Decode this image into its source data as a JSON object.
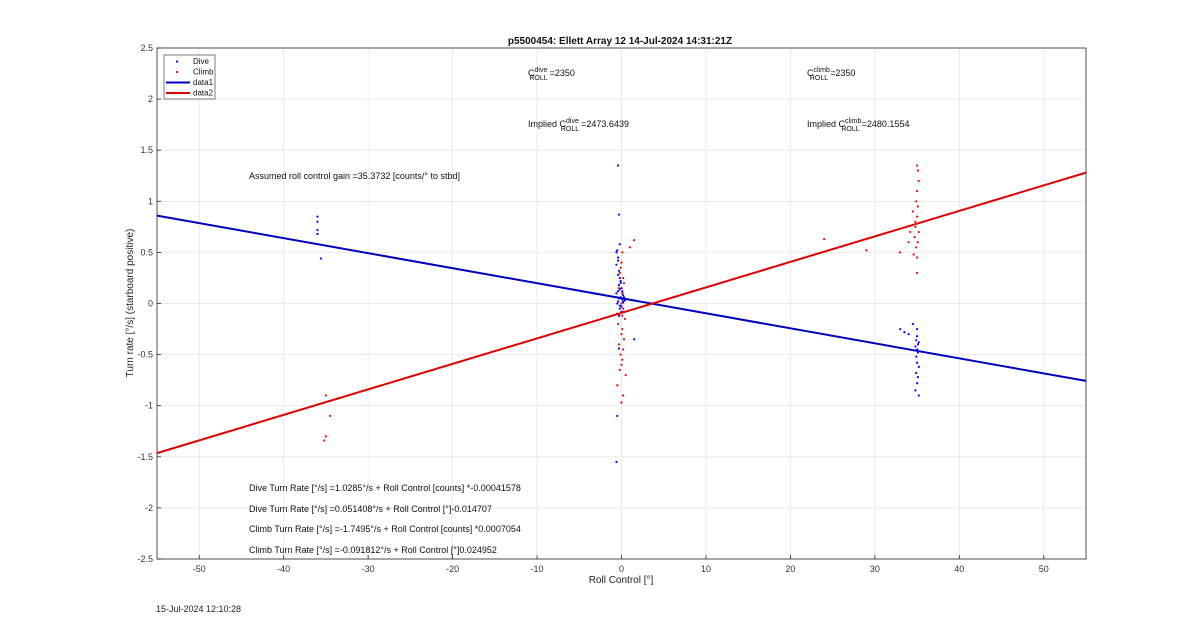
{
  "chart_data": {
    "type": "scatter",
    "title": "p5500454: Ellett Array 12 14-Jul-2024 14:31:21Z",
    "xlabel": "Roll Control [°]",
    "ylabel": "Turn rate [°/s] (starboard positive)",
    "xlim": [
      -55,
      55
    ],
    "ylim": [
      -2.5,
      2.5
    ],
    "xticks": [
      -50,
      -40,
      -30,
      -20,
      -10,
      0,
      10,
      20,
      30,
      40,
      50
    ],
    "yticks": [
      -2.5,
      -2,
      -1.5,
      -1,
      -0.5,
      0,
      0.5,
      1,
      1.5,
      2,
      2.5
    ],
    "xtick_labels": [
      "-50",
      "-40",
      "-30",
      "-20",
      "-10",
      "0",
      "10",
      "20",
      "30",
      "40",
      "50"
    ],
    "ytick_labels": [
      "-2.5",
      "-2",
      "-1.5",
      "-1",
      "-0.5",
      "0",
      "0.5",
      "1",
      "1.5",
      "2",
      "2.5"
    ],
    "grid": true,
    "legend_position": "top-left",
    "series": [
      {
        "name": "Dive",
        "kind": "scatter",
        "color": "#0000ff",
        "x": [
          -36,
          -36,
          -36,
          -36,
          -35.6,
          -0.4,
          -0.3,
          -0.2,
          -0.5,
          -0.4,
          -0.6,
          -0.3,
          -0.2,
          -0.1,
          0,
          0.1,
          0.2,
          -0.3,
          -0.4,
          -0.5,
          -0.2,
          0.1,
          0.3,
          -0.6,
          -0.4,
          -0.2,
          0,
          0.2,
          0.4,
          -0.3,
          -0.1,
          0.1,
          -0.5,
          -0.3,
          -0.1,
          0.2,
          -0.4,
          -0.2,
          0,
          -0.6,
          -0.4,
          -0.3,
          -0.5,
          -0.6,
          1.5,
          33,
          33.5,
          34,
          34.5,
          35,
          35,
          35.2,
          34.8,
          35.1,
          34.9,
          35,
          35.2,
          34.9,
          35.1,
          35,
          34.8,
          35.2,
          35,
          35.1,
          34.9
        ],
        "y": [
          0.85,
          0.8,
          0.72,
          0.68,
          0.44,
          1.35,
          0.87,
          0.58,
          0.52,
          0.45,
          0.38,
          0.32,
          0.25,
          0.2,
          0.15,
          0.1,
          0.08,
          0.05,
          0.02,
          0,
          -0.02,
          0.04,
          0.06,
          0.1,
          0.12,
          -0.05,
          -0.08,
          0.02,
          0.03,
          0.18,
          0.22,
          0.12,
          -0.1,
          -0.12,
          0.06,
          0.01,
          0.28,
          0.14,
          -0.03,
          0.5,
          0.42,
          -0.44,
          -1.1,
          -1.55,
          -0.35,
          -0.25,
          -0.28,
          -0.3,
          -0.2,
          -0.25,
          -0.32,
          -0.38,
          -0.42,
          -0.48,
          -0.52,
          -0.58,
          -0.62,
          -0.68,
          -0.72,
          -0.78,
          -0.85,
          -0.9,
          -0.45,
          -0.4,
          -0.36
        ],
        "fit": {
          "name": "data1",
          "color": "#0000c0",
          "slope": -0.014707,
          "intercept": 0.051408
        }
      },
      {
        "name": "Climb",
        "kind": "scatter",
        "color": "#ff0000",
        "x": [
          -35,
          -35,
          -34.5,
          -35.2,
          24,
          29,
          33,
          34,
          34.2,
          34.5,
          34.6,
          34.8,
          35,
          35.1,
          35.2,
          35,
          34.9,
          35.1,
          35,
          34.8,
          35.2,
          34.7,
          35.1,
          34.9,
          35,
          35,
          0.1,
          0,
          -0.1,
          -0.2,
          0.2,
          0.3,
          -0.3,
          0.1,
          -0.1,
          0,
          0.2,
          -0.2,
          0.4,
          -0.4,
          0.1,
          0,
          0.3,
          -0.3,
          0.2,
          -0.1,
          0.1,
          0,
          0.5,
          -0.5,
          1,
          1.5,
          0.2,
          0,
          -0.2,
          0.3,
          0.1
        ],
        "y": [
          -0.9,
          -1.3,
          -1.1,
          -1.34,
          0.63,
          0.52,
          0.5,
          0.6,
          0.7,
          0.9,
          0.48,
          0.8,
          1.35,
          1.3,
          1.2,
          1.1,
          1,
          0.95,
          0.85,
          0.75,
          0.7,
          0.65,
          0.6,
          0.55,
          0.45,
          0.3,
          0.5,
          0.4,
          0.35,
          0.3,
          0.25,
          0.2,
          0.15,
          0.1,
          0.05,
          0,
          -0.05,
          -0.1,
          -0.15,
          -0.2,
          -0.25,
          -0.3,
          -0.35,
          -0.4,
          -0.45,
          -0.5,
          -0.55,
          -0.6,
          -0.7,
          -0.8,
          0.55,
          0.62,
          -0.9,
          -0.97,
          -0.65,
          -0.08,
          -0.12
        ],
        "fit": {
          "name": "data2",
          "color": "#e00000",
          "slope": 0.024952,
          "intercept": -0.091812
        }
      }
    ]
  },
  "legend": {
    "items": [
      {
        "label": "Dive",
        "kind": "marker",
        "color": "#0000ff"
      },
      {
        "label": "Climb",
        "kind": "marker",
        "color": "#ff0000"
      },
      {
        "label": "data1",
        "kind": "line",
        "color": "#0000c0"
      },
      {
        "label": "data2",
        "kind": "line",
        "color": "#e00000"
      }
    ]
  },
  "annotations": {
    "c_dive": {
      "base": "C",
      "sup": "dive",
      "sub": "ROLL",
      "value": "=2350"
    },
    "c_climb": {
      "base": "C",
      "sup": "climb",
      "sub": "ROLL",
      "value": "=2350"
    },
    "implied_dive": {
      "prefix": "Implied C",
      "sup": "dive",
      "sub": "ROLL",
      "value": "=2473.6439"
    },
    "implied_climb": {
      "prefix": "Implied C",
      "sup": "climb",
      "sub": "ROLL",
      "value": "=2480.1554"
    },
    "gain": "Assumed roll control gain =35.3732 [counts/° to stbd]",
    "equations": [
      "Dive Turn Rate [°/s] =1.0285°/s + Roll Control [counts] *-0.00041578",
      "Dive Turn Rate [°/s] =0.051408°/s + Roll Control [°]-0.014707",
      "Climb Turn Rate [°/s] =-1.7495°/s + Roll Control [counts] *0.0007054",
      "Climb Turn Rate [°/s] =-0.091812°/s + Roll Control [°]0.024952"
    ]
  },
  "footer": {
    "timestamp": "15-Jul-2024 12:10:28"
  }
}
